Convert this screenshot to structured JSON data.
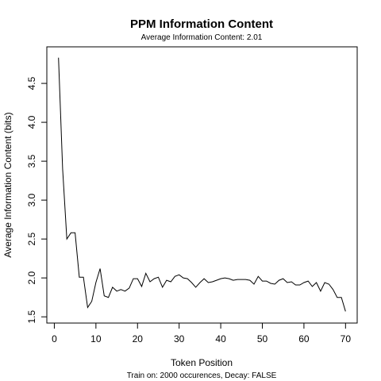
{
  "chart_data": {
    "type": "line",
    "title": "PPM Information Content",
    "subtitle": "Average Information Content: 2.01",
    "xlabel": "Token Position",
    "ylabel": "Average Information Content (bits)",
    "footer": "Train on: 2000 occurences, Decay: FALSE",
    "xlim": [
      -1.8,
      72.8
    ],
    "ylim": [
      1.42,
      4.97
    ],
    "xticks": [
      "0",
      "10",
      "20",
      "30",
      "40",
      "50",
      "60",
      "70"
    ],
    "yticks": [
      "1.5",
      "2.0",
      "2.5",
      "3.0",
      "3.5",
      "4.0",
      "4.5"
    ],
    "line_color": "#000000",
    "grid": false,
    "x": [
      1,
      2,
      3,
      4,
      5,
      6,
      7,
      8,
      9,
      10,
      11,
      12,
      13,
      14,
      15,
      16,
      17,
      18,
      19,
      20,
      21,
      22,
      23,
      24,
      25,
      26,
      27,
      28,
      29,
      30,
      31,
      32,
      33,
      34,
      35,
      36,
      37,
      38,
      39,
      40,
      41,
      42,
      43,
      44,
      45,
      46,
      47,
      48,
      49,
      50,
      51,
      52,
      53,
      54,
      55,
      56,
      57,
      58,
      59,
      60,
      61,
      62,
      63,
      64,
      65,
      66,
      67,
      68,
      69,
      70
    ],
    "y": [
      4.83,
      3.4,
      2.5,
      2.58,
      2.58,
      2.01,
      2.01,
      1.62,
      1.7,
      1.94,
      2.12,
      1.77,
      1.75,
      1.88,
      1.83,
      1.85,
      1.83,
      1.87,
      1.99,
      1.99,
      1.89,
      2.06,
      1.95,
      1.99,
      2.01,
      1.88,
      1.97,
      1.95,
      2.02,
      2.04,
      2.0,
      1.99,
      1.94,
      1.88,
      1.94,
      1.99,
      1.94,
      1.95,
      1.97,
      1.99,
      2.0,
      1.99,
      1.97,
      1.98,
      1.98,
      1.98,
      1.97,
      1.92,
      2.02,
      1.96,
      1.96,
      1.93,
      1.92,
      1.97,
      1.99,
      1.94,
      1.95,
      1.91,
      1.91,
      1.94,
      1.96,
      1.89,
      1.94,
      1.83,
      1.94,
      1.92,
      1.85,
      1.75,
      1.75,
      1.57
    ]
  }
}
